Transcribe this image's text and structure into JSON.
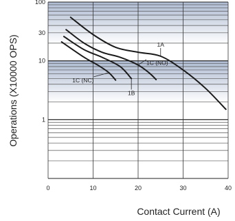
{
  "chart_data": {
    "type": "line",
    "ylabel": "Operations (X10000 OPS)",
    "xlabel": "Contact Current (A)",
    "y_scale": "log",
    "ylim": [
      0.1,
      100
    ],
    "xlim": [
      0,
      40
    ],
    "x_ticks": [
      "0",
      "10",
      "20",
      "30",
      "40"
    ],
    "y_ticks": [
      "100",
      "30",
      "10",
      "1"
    ],
    "grid": true,
    "colors": {
      "line": "#1a1a1a",
      "band": "#b7c3d8",
      "grid": "#3a3a3a"
    },
    "series": [
      {
        "name": "1A",
        "x": [
          5,
          10,
          15,
          20,
          25,
          30,
          35,
          39.5
        ],
        "y": [
          55,
          28,
          17,
          14,
          12,
          7,
          3.4,
          1.5
        ]
      },
      {
        "name": "1C (NO)",
        "x": [
          4,
          8,
          12,
          16,
          20,
          22.5,
          24
        ],
        "y": [
          34,
          20,
          14,
          11.5,
          8.5,
          6.2,
          4.8
        ]
      },
      {
        "name": "1B",
        "x": [
          3.5,
          8,
          12,
          16,
          18.5
        ],
        "y": [
          26,
          15.5,
          11.5,
          8,
          5
        ]
      },
      {
        "name": "1C (NC)",
        "x": [
          3,
          8,
          11,
          13.5,
          15
        ],
        "y": [
          21,
          11.5,
          8.5,
          6.3,
          4.7
        ]
      }
    ]
  }
}
